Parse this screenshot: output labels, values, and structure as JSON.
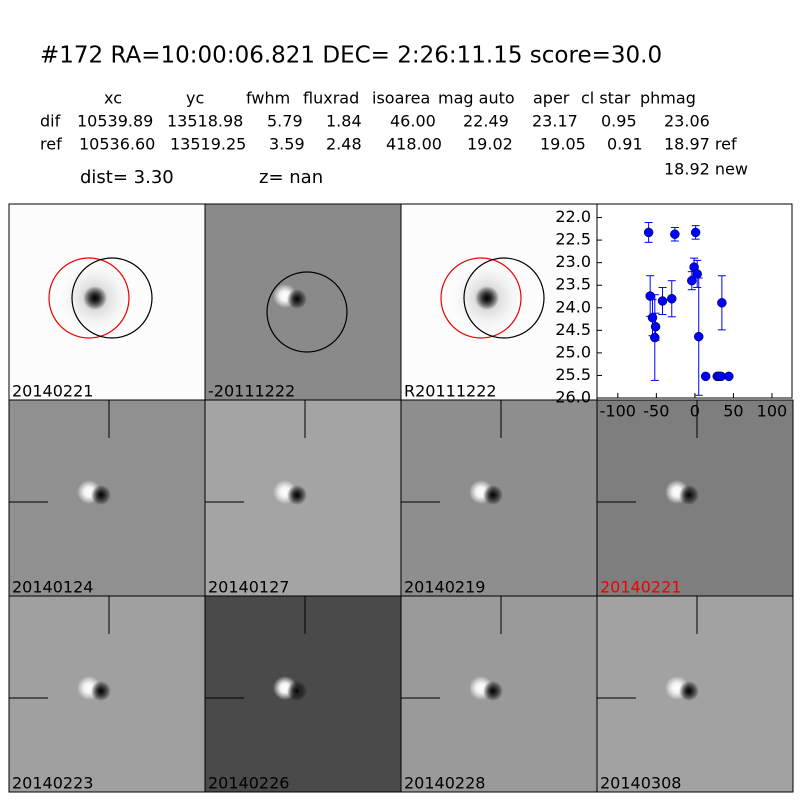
{
  "header": {
    "title": "#172   RA=10:00:06.821 DEC= 2:26:11.15      score=30.0"
  },
  "table": {
    "columns": [
      "xc",
      "yc",
      "fwhm",
      "fluxrad",
      "isoarea",
      "mag auto",
      "aper",
      "cl star",
      "phmag"
    ],
    "rows": [
      [
        "dif",
        "10539.89",
        "13518.98",
        "5.79",
        "1.84",
        "46.00",
        "22.49",
        "23.17",
        "0.95",
        "23.06"
      ],
      [
        "ref",
        "10536.60",
        "13519.25",
        "3.59",
        "2.48",
        "418.00",
        "19.02",
        "19.05",
        "0.91",
        "18.97 ref"
      ]
    ],
    "extra": "18.92 new",
    "dist": "dist=  3.30",
    "z": "z=   nan"
  },
  "stamps": [
    "20140221",
    "-20111222",
    "R20111222",
    "20140124",
    "20140127",
    "20140219",
    "20140221",
    "20140223",
    "20140226",
    "20140228",
    "20140308"
  ],
  "chart_data": {
    "type": "scatter",
    "color": "#0000ff",
    "x": [
      -60,
      -58,
      -55,
      -51,
      -52,
      -42,
      -30,
      -26,
      -4,
      -1,
      1,
      3,
      5,
      14,
      29,
      31,
      34,
      35,
      44
    ],
    "values": [
      22.33,
      23.74,
      24.22,
      24.42,
      24.66,
      23.85,
      23.8,
      22.37,
      23.4,
      23.1,
      22.33,
      23.25,
      24.64,
      25.52,
      25.52,
      25.52,
      25.52,
      23.89,
      25.52
    ],
    "errors": [
      0.22,
      0.45,
      0.4,
      0.3,
      0.95,
      0.3,
      0.4,
      0.15,
      0.2,
      0.2,
      0.15,
      0.3,
      1.3,
      0,
      0,
      0,
      0,
      0.6,
      0
    ],
    "xlim": [
      -127,
      126
    ],
    "xticks": [
      -100,
      -50,
      0,
      50,
      100
    ],
    "ylim": [
      21.7,
      26.0
    ],
    "y_inverted": true,
    "yticks": [
      {
        "value": 22,
        "label": "22.0"
      },
      {
        "value": 22.5,
        "label": "22.5"
      },
      {
        "value": 23,
        "label": "23.0"
      },
      {
        "value": 23.5,
        "label": "23.5"
      },
      {
        "value": 24,
        "label": "24.0"
      },
      {
        "value": 24.5,
        "label": "24.5"
      },
      {
        "value": 25,
        "label": "25.0"
      },
      {
        "value": 25.5,
        "label": "25.5"
      },
      {
        "value": 26,
        "label": "26.0"
      }
    ]
  }
}
